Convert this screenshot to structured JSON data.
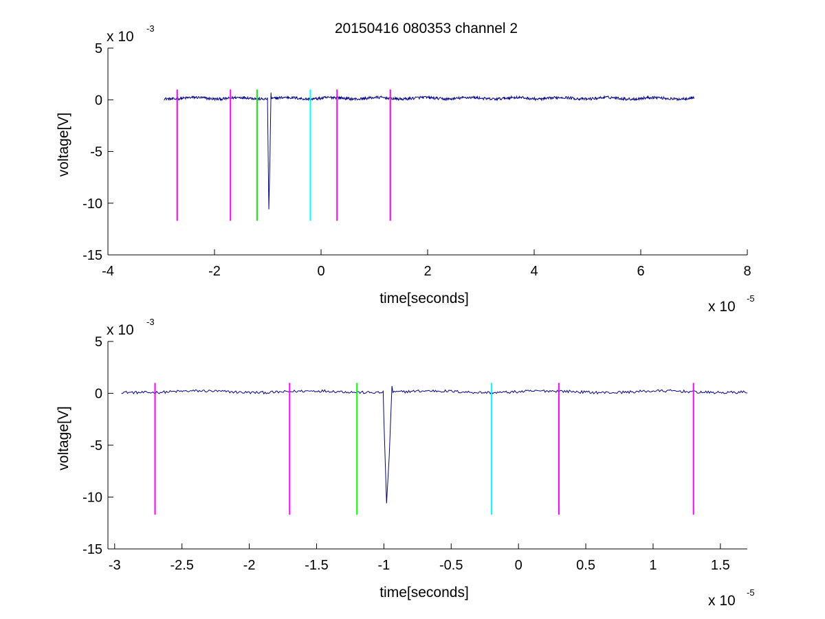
{
  "figure": {
    "title": "20150416 080353 channel 2"
  },
  "colors": {
    "signal": "#00008b",
    "magenta": "#ff00ff",
    "green": "#00ff00",
    "cyan": "#00ffff",
    "axes": "#000000"
  },
  "chart_data": [
    {
      "type": "line",
      "title": "20150416 080353 channel 2",
      "xlabel": "time[seconds]",
      "ylabel": "voltage[V]",
      "x_multiplier_label": "x 10",
      "x_multiplier_exponent": "-5",
      "y_multiplier_label": "x 10",
      "y_multiplier_exponent": "-3",
      "xlim": [
        -4,
        8
      ],
      "ylim": [
        -15,
        5
      ],
      "x_ticks": [
        -4,
        -2,
        0,
        2,
        4,
        6,
        8
      ],
      "x_tick_labels": [
        "-4",
        "-2",
        "0",
        "2",
        "4",
        "6",
        "8"
      ],
      "y_ticks": [
        -15,
        -10,
        -5,
        0,
        5
      ],
      "y_tick_labels": [
        "-15",
        "-10",
        "-5",
        "0",
        "5"
      ],
      "grid": false,
      "series": [
        {
          "kind": "signal",
          "color": "#00008b",
          "x_range": [
            -2.95,
            7.0
          ],
          "baseline": 0.15,
          "noise_amplitude": 0.22,
          "pulse": {
            "x": [
              -1.0,
              -0.98,
              -0.96,
              -0.94
            ],
            "y": [
              -2.5,
              -10.6,
              -6.0,
              0.7
            ]
          }
        }
      ],
      "markers": [
        {
          "x": -2.7,
          "color": "#ff00ff",
          "y_top": 1.0,
          "y_bottom": -11.7
        },
        {
          "x": -1.7,
          "color": "#ff00ff",
          "y_top": 1.0,
          "y_bottom": -11.7
        },
        {
          "x": -1.2,
          "color": "#00ff00",
          "y_top": 1.0,
          "y_bottom": -11.7
        },
        {
          "x": -0.2,
          "color": "#00ffff",
          "y_top": 1.0,
          "y_bottom": -11.7
        },
        {
          "x": 0.3,
          "color": "#ff00ff",
          "y_top": 1.0,
          "y_bottom": -11.7
        },
        {
          "x": 1.3,
          "color": "#ff00ff",
          "y_top": 1.0,
          "y_bottom": -11.7
        }
      ]
    },
    {
      "type": "line",
      "title": "",
      "xlabel": "time[seconds]",
      "ylabel": "voltage[V]",
      "x_multiplier_label": "x 10",
      "x_multiplier_exponent": "-5",
      "y_multiplier_label": "x 10",
      "y_multiplier_exponent": "-3",
      "xlim": [
        -3.05,
        1.7
      ],
      "ylim": [
        -15,
        5
      ],
      "x_ticks": [
        -3,
        -2.5,
        -2,
        -1.5,
        -1,
        -0.5,
        0,
        0.5,
        1,
        1.5
      ],
      "x_tick_labels": [
        "-3",
        "-2.5",
        "-2",
        "-1.5",
        "-1",
        "-0.5",
        "0",
        "0.5",
        "1",
        "1.5"
      ],
      "y_ticks": [
        -15,
        -10,
        -5,
        0,
        5
      ],
      "y_tick_labels": [
        "-15",
        "-10",
        "-5",
        "0",
        "5"
      ],
      "grid": false,
      "series": [
        {
          "kind": "signal",
          "color": "#00008b",
          "x_range": [
            -2.95,
            1.7
          ],
          "baseline": 0.15,
          "noise_amplitude": 0.22,
          "pulse": {
            "x": [
              -1.0,
              -0.98,
              -0.96,
              -0.94
            ],
            "y": [
              -2.5,
              -10.6,
              -6.0,
              0.7
            ]
          }
        }
      ],
      "markers": [
        {
          "x": -2.7,
          "color": "#ff00ff",
          "y_top": 1.0,
          "y_bottom": -11.7
        },
        {
          "x": -1.7,
          "color": "#ff00ff",
          "y_top": 1.0,
          "y_bottom": -11.7
        },
        {
          "x": -1.2,
          "color": "#00ff00",
          "y_top": 1.0,
          "y_bottom": -11.7
        },
        {
          "x": -0.2,
          "color": "#00ffff",
          "y_top": 1.0,
          "y_bottom": -11.7
        },
        {
          "x": 0.3,
          "color": "#ff00ff",
          "y_top": 1.0,
          "y_bottom": -11.7
        },
        {
          "x": 1.3,
          "color": "#ff00ff",
          "y_top": 1.0,
          "y_bottom": -11.7
        }
      ]
    }
  ]
}
